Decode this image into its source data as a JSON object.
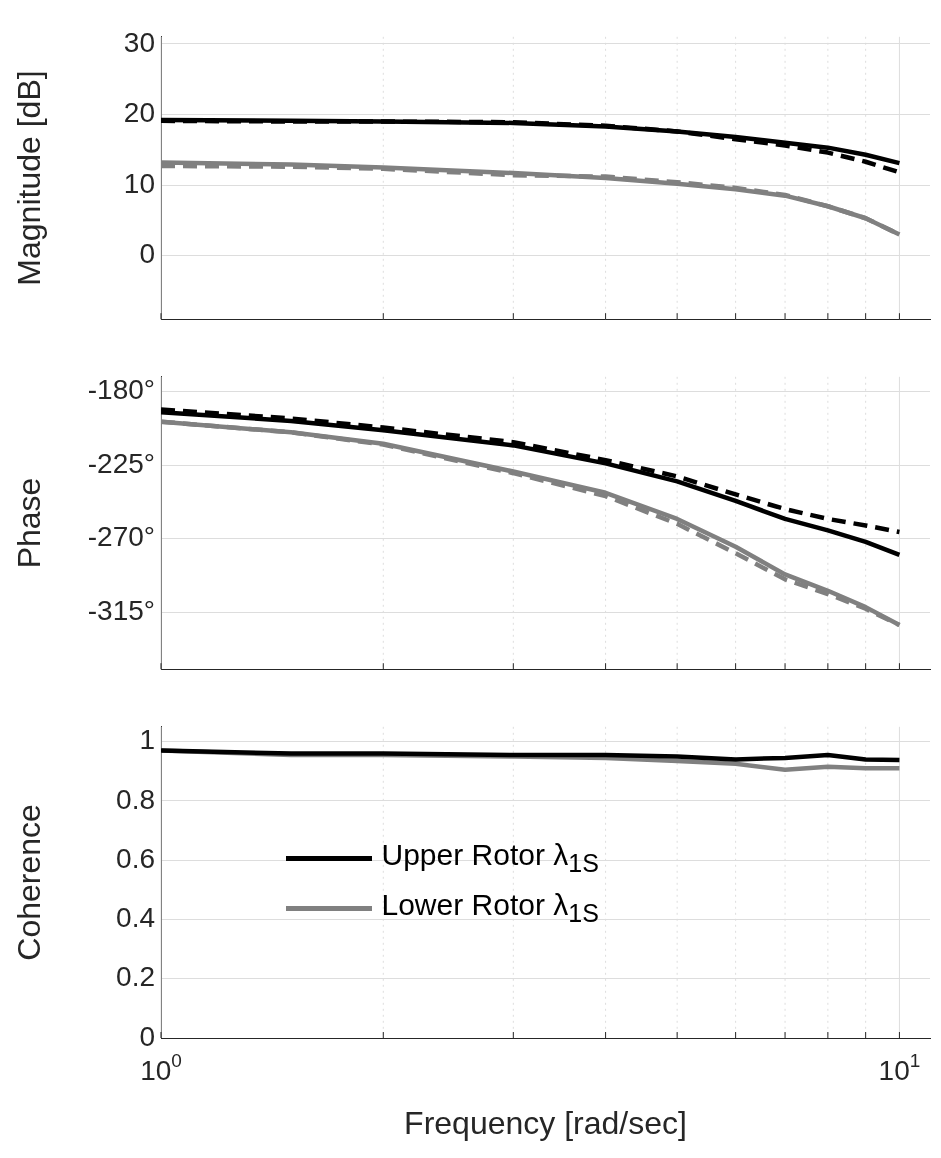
{
  "chart_data": [
    {
      "type": "line",
      "ylabel": "Magnitude [dB]",
      "log": "x",
      "grid": true,
      "tick_labels": "y",
      "marker": "none",
      "xlim": [
        1,
        11
      ],
      "xticks": [
        {
          "value": 1,
          "label": null
        },
        {
          "value": 2,
          "label": null
        },
        {
          "value": 3,
          "label": null
        },
        {
          "value": 4,
          "label": null
        },
        {
          "value": 5,
          "label": null
        },
        {
          "value": 6,
          "label": null
        },
        {
          "value": 7,
          "label": null
        },
        {
          "value": 8,
          "label": null
        },
        {
          "value": 9,
          "label": null
        },
        {
          "value": 10,
          "label": null
        }
      ],
      "ylim": [
        -9,
        31
      ],
      "yticks": [
        0,
        10,
        20,
        30
      ],
      "x": [
        1,
        1.5,
        2,
        3,
        4,
        5,
        6,
        7,
        8,
        9,
        10
      ],
      "series": [
        {
          "color": "#000000",
          "line_style": "solid",
          "values": [
            19.2,
            19.1,
            19.0,
            18.8,
            18.3,
            17.6,
            16.8,
            16.0,
            15.3,
            14.3,
            13.1
          ]
        },
        {
          "color": "#000000",
          "line_style": "dashed",
          "values": [
            19.1,
            19.0,
            19.0,
            18.9,
            18.4,
            17.6,
            16.5,
            15.6,
            14.6,
            13.3,
            11.8
          ]
        },
        {
          "color": "#808080",
          "line_style": "solid",
          "values": [
            13.2,
            12.9,
            12.5,
            11.7,
            11.0,
            10.2,
            9.4,
            8.5,
            7.0,
            5.3,
            3.0
          ]
        },
        {
          "color": "#808080",
          "line_style": "dashed",
          "values": [
            12.7,
            12.6,
            12.3,
            11.4,
            11.2,
            10.4,
            9.6,
            8.6,
            7.0,
            5.3,
            3.0
          ]
        }
      ]
    },
    {
      "type": "line",
      "ylabel": "Phase",
      "log": "x",
      "grid": true,
      "tick_labels": "y",
      "marker": "none",
      "xlim": [
        1,
        11
      ],
      "xticks": [
        {
          "value": 1,
          "label": null
        },
        {
          "value": 2,
          "label": null
        },
        {
          "value": 3,
          "label": null
        },
        {
          "value": 4,
          "label": null
        },
        {
          "value": 5,
          "label": null
        },
        {
          "value": 6,
          "label": null
        },
        {
          "value": 7,
          "label": null
        },
        {
          "value": 8,
          "label": null
        },
        {
          "value": 9,
          "label": null
        },
        {
          "value": 10,
          "label": null
        }
      ],
      "ylim": [
        -350,
        -171
      ],
      "yticks": [
        {
          "value": -180,
          "label": "-180°"
        },
        {
          "value": -225,
          "label": "-225°"
        },
        {
          "value": -270,
          "label": "-270°"
        },
        {
          "value": -315,
          "label": "-315°"
        }
      ],
      "x": [
        1,
        1.5,
        2,
        3,
        4,
        5,
        6,
        7,
        8,
        9,
        10
      ],
      "series": [
        {
          "color": "#000000",
          "line_style": "solid",
          "values": [
            -192.7,
            -198,
            -203.7,
            -213,
            -224,
            -235,
            -247,
            -258,
            -265,
            -272,
            -280
          ]
        },
        {
          "color": "#000000",
          "line_style": "dashed",
          "values": [
            -191,
            -196.5,
            -202,
            -211,
            -222,
            -232,
            -243,
            -252,
            -258,
            -262,
            -266
          ]
        },
        {
          "color": "#808080",
          "line_style": "solid",
          "values": [
            -198.5,
            -205,
            -212,
            -229,
            -242,
            -258,
            -275,
            -292,
            -302,
            -312,
            -323
          ]
        },
        {
          "color": "#808080",
          "line_style": "dashed",
          "values": [
            -198.5,
            -205,
            -212.5,
            -230,
            -244,
            -261,
            -279,
            -295,
            -304,
            -313,
            -323
          ]
        }
      ]
    },
    {
      "type": "line",
      "ylabel": "Coherence",
      "xlabel": "Frequency [rad/sec]",
      "log": "x",
      "grid": true,
      "legend": "center",
      "marker": "none",
      "xlim": [
        1,
        11
      ],
      "xticks": [
        {
          "value": 1,
          "label": "10$^{0}$"
        },
        {
          "value": 2,
          "label": null
        },
        {
          "value": 3,
          "label": null
        },
        {
          "value": 4,
          "label": null
        },
        {
          "value": 5,
          "label": null
        },
        {
          "value": 6,
          "label": null
        },
        {
          "value": 7,
          "label": null
        },
        {
          "value": 8,
          "label": null
        },
        {
          "value": 9,
          "label": null
        },
        {
          "value": 10,
          "label": "10$^{1}$"
        }
      ],
      "ylim": [
        0,
        1.05
      ],
      "yticks": [
        0,
        0.2,
        0.4,
        0.6,
        0.8,
        1
      ],
      "x": [
        1,
        1.5,
        2,
        3,
        4,
        5,
        6,
        7,
        8,
        9,
        10
      ],
      "series": [
        {
          "name": "Upper Rotor λ$_{1S}$",
          "color": "#000000",
          "line_style": "solid",
          "values": [
            0.97,
            0.96,
            0.96,
            0.955,
            0.955,
            0.95,
            0.94,
            0.945,
            0.955,
            0.94,
            0.938
          ]
        },
        {
          "name": "Lower Rotor λ$_{1S}$",
          "color": "#808080",
          "line_style": "solid",
          "values": [
            0.97,
            0.955,
            0.955,
            0.95,
            0.945,
            0.935,
            0.925,
            0.905,
            0.915,
            0.91,
            0.91
          ]
        }
      ]
    }
  ]
}
